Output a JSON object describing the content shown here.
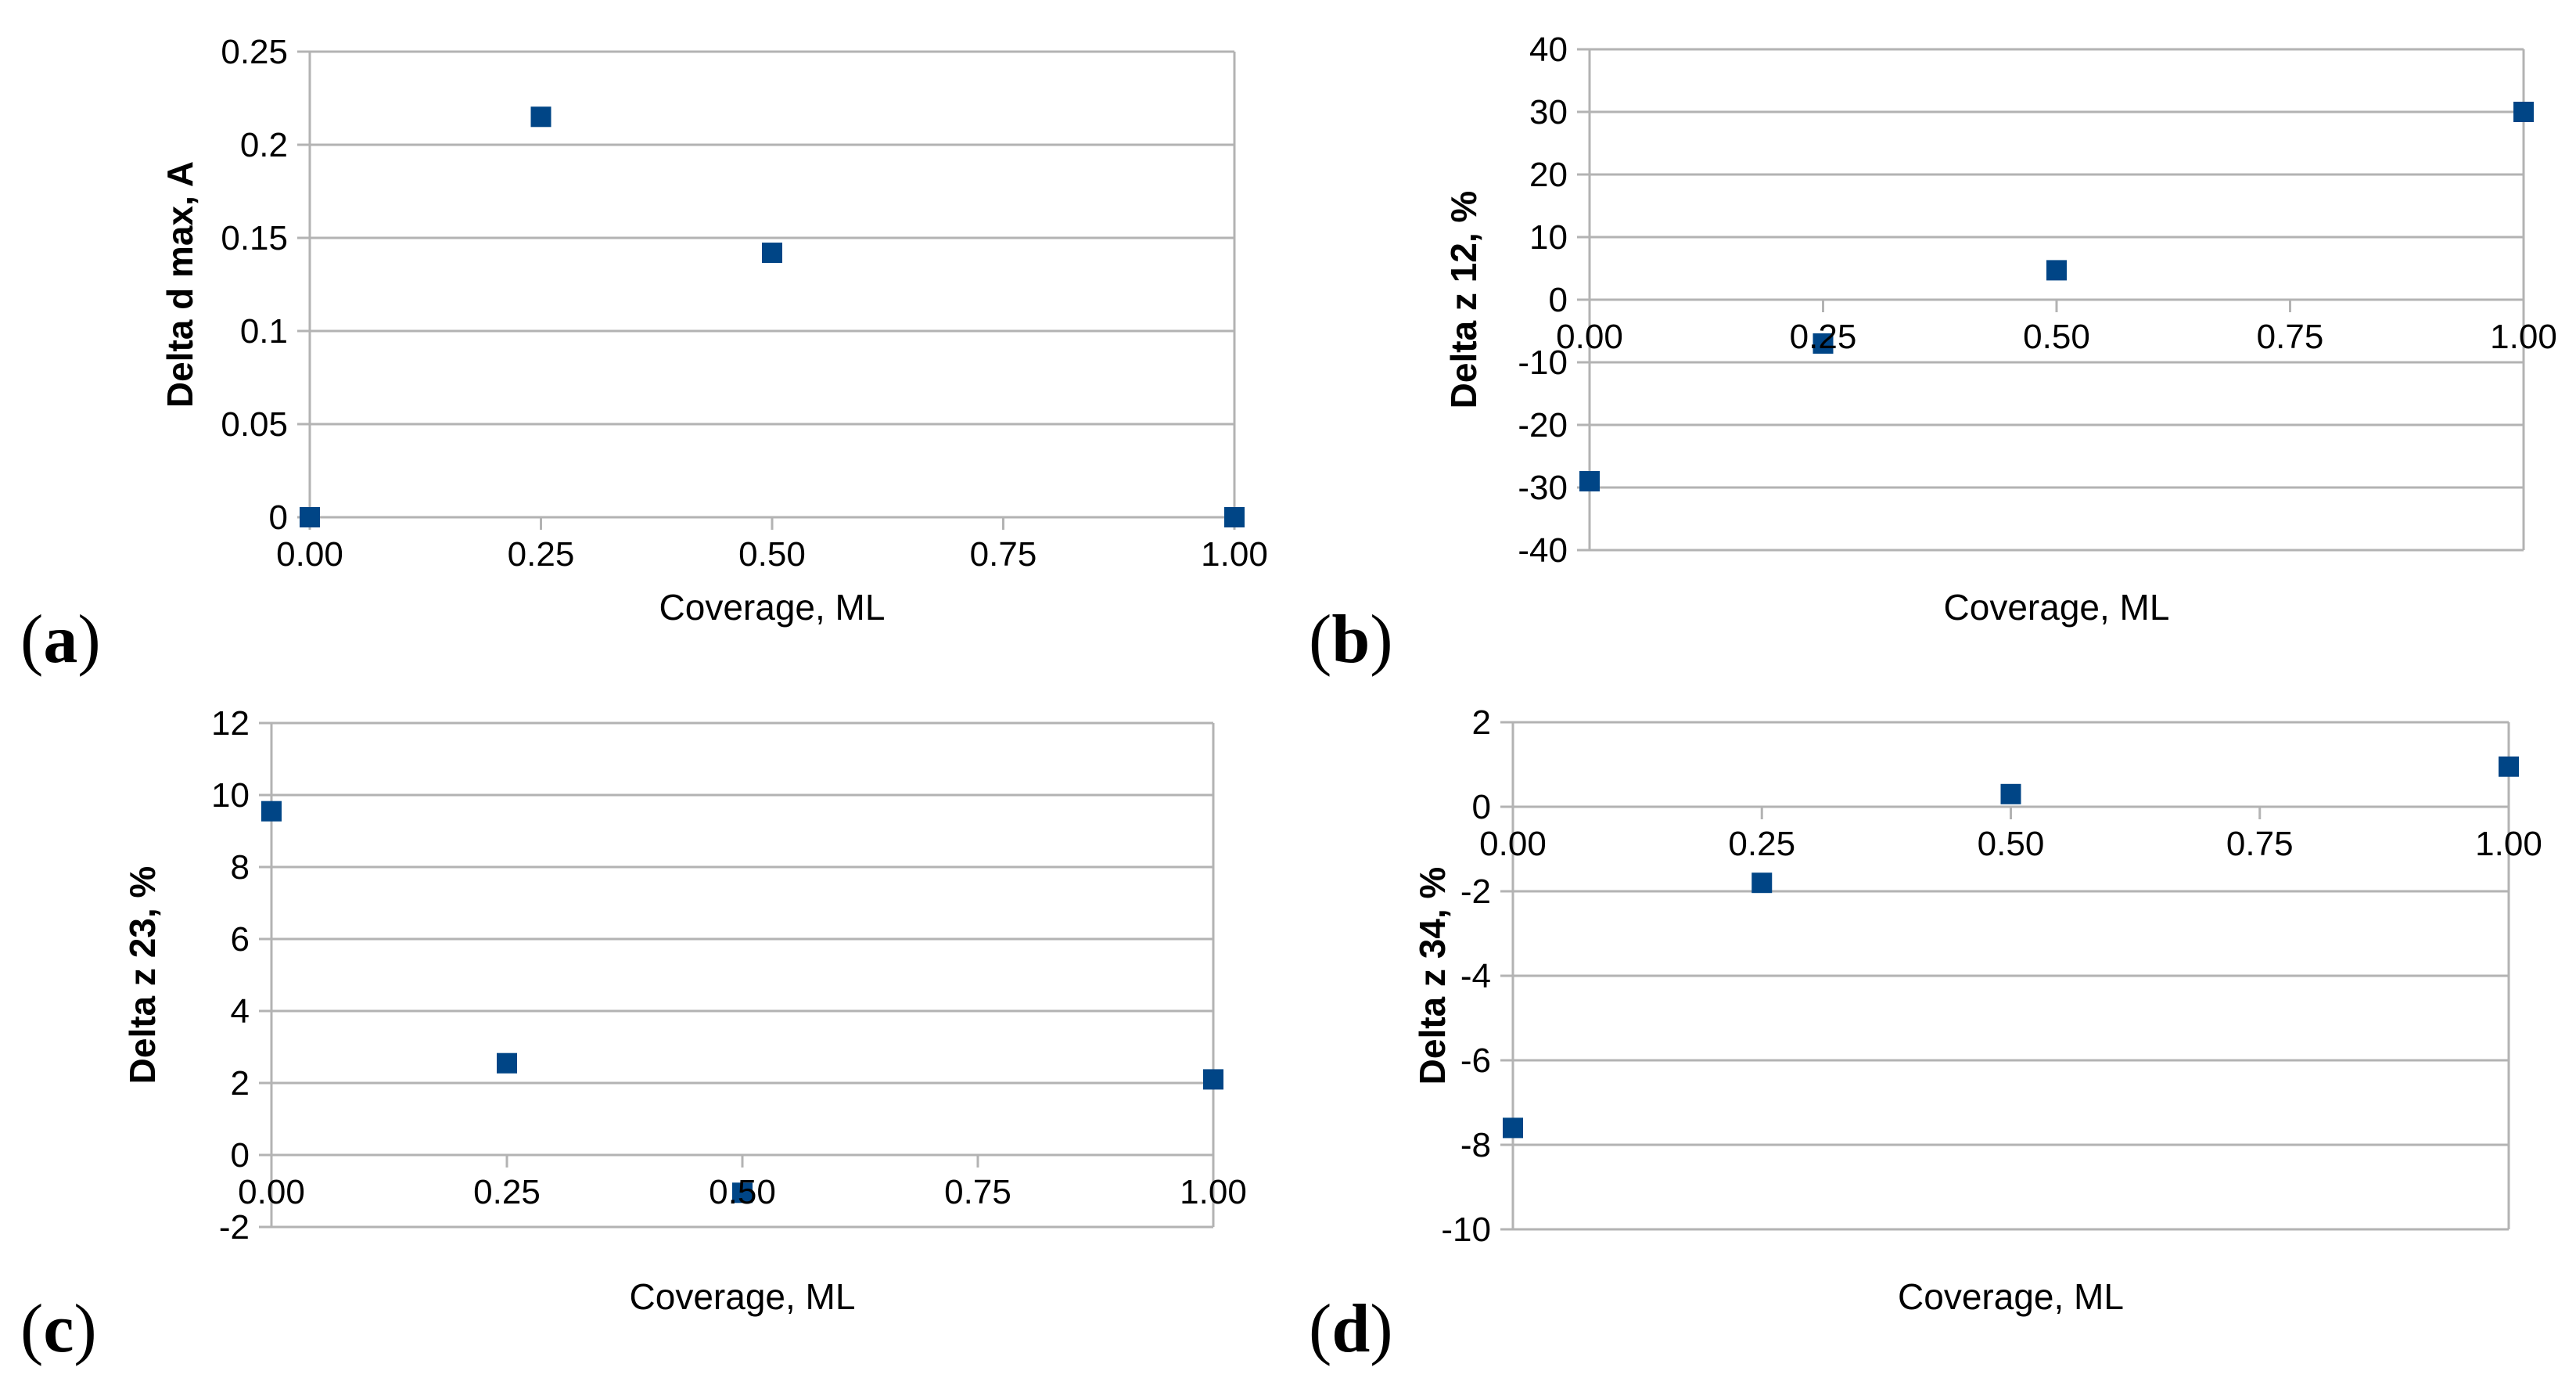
{
  "figure": {
    "background": "#ffffff",
    "colors": {
      "marker": "#004586",
      "grid": "#b3b3b3",
      "axis": "#b3b3b3",
      "text": "#000000"
    }
  },
  "chart_data": [
    {
      "id": "a",
      "type": "scatter",
      "panel_letter": {
        "open": "(",
        "char": "a",
        "close": ")"
      },
      "title": "",
      "xlabel": "Coverage, ML",
      "ylabel": "Delta d max, A",
      "x": [
        0,
        0.25,
        0.5,
        1
      ],
      "y": [
        0,
        0.215,
        0.142,
        0
      ],
      "xlim": [
        0,
        1
      ],
      "ylim": [
        0,
        0.25
      ],
      "xticks": [
        0,
        0.25,
        0.5,
        0.75,
        1
      ],
      "xtick_labels": [
        "0.00",
        "0.25",
        "0.50",
        "0.75",
        "1.00"
      ],
      "yticks": [
        0,
        0.05,
        0.1,
        0.15,
        0.2,
        0.25
      ],
      "ytick_labels": [
        "0",
        "0.05",
        "0.1",
        "0.15",
        "0.2",
        "0.25"
      ],
      "x_axis_cross_y": 0,
      "grid": true,
      "legend": "none",
      "marker": "square"
    },
    {
      "id": "b",
      "type": "scatter",
      "panel_letter": {
        "open": "(",
        "char": "b",
        "close": ")"
      },
      "title": "",
      "xlabel": "Coverage, ML",
      "ylabel": "Delta z 12, %",
      "x": [
        0,
        0.25,
        0.5,
        1
      ],
      "y": [
        -29,
        -7,
        4.7,
        30
      ],
      "xlim": [
        0,
        1
      ],
      "ylim": [
        -40,
        40
      ],
      "xticks": [
        0,
        0.25,
        0.5,
        0.75,
        1
      ],
      "xtick_labels": [
        "0.00",
        "0.25",
        "0.50",
        "0.75",
        "1.00"
      ],
      "yticks": [
        -40,
        -30,
        -20,
        -10,
        0,
        10,
        20,
        30,
        40
      ],
      "ytick_labels": [
        "-40",
        "-30",
        "-20",
        "-10",
        "0",
        "10",
        "20",
        "30",
        "40"
      ],
      "x_axis_cross_y": 0,
      "grid": true,
      "legend": "none",
      "marker": "square"
    },
    {
      "id": "c",
      "type": "scatter",
      "panel_letter": {
        "open": "(",
        "char": "c",
        "close": ")"
      },
      "title": "",
      "xlabel": "Coverage, ML",
      "ylabel": "Delta z 23, %",
      "x": [
        0,
        0.25,
        0.5,
        1
      ],
      "y": [
        9.55,
        2.55,
        -1.05,
        2.1
      ],
      "xlim": [
        0,
        1
      ],
      "ylim": [
        -2,
        12
      ],
      "xticks": [
        0,
        0.25,
        0.5,
        0.75,
        1
      ],
      "xtick_labels": [
        "0.00",
        "0.25",
        "0.50",
        "0.75",
        "1.00"
      ],
      "yticks": [
        -2,
        0,
        2,
        4,
        6,
        8,
        10,
        12
      ],
      "ytick_labels": [
        "-2",
        "0",
        "2",
        "4",
        "6",
        "8",
        "10",
        "12"
      ],
      "x_axis_cross_y": 0,
      "grid": true,
      "legend": "none",
      "marker": "square"
    },
    {
      "id": "d",
      "type": "scatter",
      "panel_letter": {
        "open": "(",
        "char": "d",
        "close": ")"
      },
      "title": "",
      "xlabel": "Coverage, ML",
      "ylabel": "Delta z 34, %",
      "x": [
        0,
        0.25,
        0.5,
        1
      ],
      "y": [
        -7.6,
        -1.8,
        0.3,
        0.95
      ],
      "xlim": [
        0,
        1
      ],
      "ylim": [
        -10,
        2
      ],
      "xticks": [
        0,
        0.25,
        0.5,
        0.75,
        1
      ],
      "xtick_labels": [
        "0.00",
        "0.25",
        "0.50",
        "0.75",
        "1.00"
      ],
      "yticks": [
        -10,
        -8,
        -6,
        -4,
        -2,
        0,
        2
      ],
      "ytick_labels": [
        "-10",
        "-8",
        "-6",
        "-4",
        "-2",
        "0",
        "2"
      ],
      "x_axis_cross_y": 0,
      "grid": true,
      "legend": "none",
      "marker": "square"
    }
  ]
}
